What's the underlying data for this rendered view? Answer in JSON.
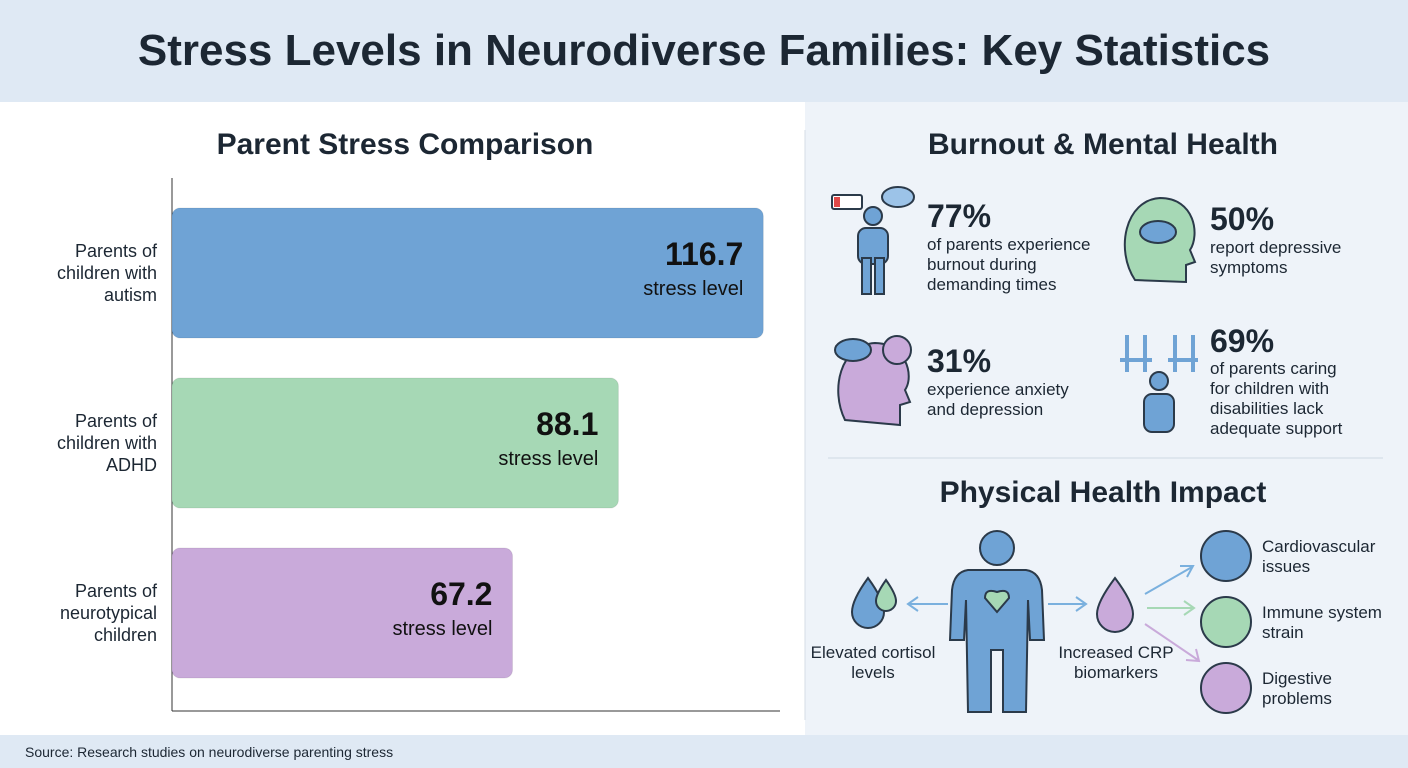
{
  "title": "Stress Levels in Neurodiverse Families: Key Statistics",
  "chart_data": {
    "type": "bar",
    "orientation": "horizontal",
    "title": "Parent Stress Comparison",
    "categories": [
      "Parents of children with autism",
      "Parents of children with ADHD",
      "Parents of neurotypical children"
    ],
    "values": [
      116.7,
      88.1,
      67.2
    ],
    "value_caption": "stress level",
    "colors": [
      "#6fa3d5",
      "#a6d8b5",
      "#c9aada"
    ],
    "xlim": [
      0,
      120
    ]
  },
  "burnout": {
    "title": "Burnout & Mental Health",
    "stats": [
      {
        "value": "77%",
        "text": "of parents experience burnout during demanding times"
      },
      {
        "value": "50%",
        "text": "report depressive symptoms"
      },
      {
        "value": "31%",
        "text": "experience anxiety and depression"
      },
      {
        "value": "69%",
        "text": "of parents caring for children with disabilities lack adequate support"
      }
    ]
  },
  "physical": {
    "title": "Physical Health Impact",
    "markers": [
      "Elevated cortisol levels",
      "Increased CRP biomarkers"
    ],
    "outcomes": [
      "Cardiovascular issues",
      "Immune system strain",
      "Digestive problems"
    ]
  },
  "source": "Source: Research studies on neurodiverse parenting stress"
}
